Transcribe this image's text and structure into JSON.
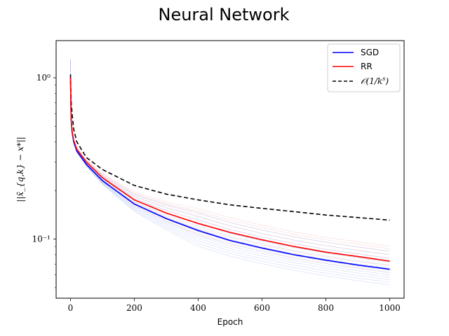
{
  "chart_data": {
    "type": "line",
    "title": "Neural Network",
    "xlabel": "Epoch",
    "ylabel": "||x̄_{q,k} − x*||",
    "xscale": "linear",
    "yscale": "log",
    "xlim": [
      -45,
      1045
    ],
    "ylim": [
      0.043,
      1.7
    ],
    "xticks": [
      0,
      200,
      400,
      600,
      800,
      1000
    ],
    "xtick_labels": [
      "0",
      "200",
      "400",
      "600",
      "800",
      "1000"
    ],
    "yticks": [
      0.1,
      1.0
    ],
    "ytick_labels": [
      "10⁻¹",
      "10⁰"
    ],
    "grid": false,
    "legend_position": "top-right",
    "x": [
      0,
      2,
      5,
      10,
      20,
      50,
      100,
      200,
      300,
      400,
      500,
      600,
      700,
      800,
      900,
      1000
    ],
    "series": [
      {
        "name": "SGD",
        "color": "#0000ff",
        "style": "solid",
        "values": [
          1.0,
          0.55,
          0.46,
          0.4,
          0.35,
          0.29,
          0.23,
          0.165,
          0.134,
          0.113,
          0.098,
          0.088,
          0.08,
          0.074,
          0.069,
          0.065
        ]
      },
      {
        "name": "RR",
        "color": "#ff0000",
        "style": "solid",
        "values": [
          1.0,
          0.56,
          0.47,
          0.41,
          0.36,
          0.3,
          0.24,
          0.175,
          0.145,
          0.125,
          0.11,
          0.099,
          0.09,
          0.083,
          0.078,
          0.073
        ]
      },
      {
        "name": "𝒪(1/k^s)",
        "color": "#000000",
        "style": "dashed",
        "values": [
          1.05,
          0.72,
          0.6,
          0.48,
          0.4,
          0.32,
          0.27,
          0.215,
          0.19,
          0.175,
          0.163,
          0.155,
          0.148,
          0.141,
          0.136,
          0.131
        ]
      }
    ],
    "faint_runs": {
      "sgd_color": "#aabcf5",
      "rr_color": "#f5b4b4",
      "sgd_final_values": [
        0.052,
        0.054,
        0.056,
        0.058,
        0.06,
        0.062,
        0.064,
        0.066,
        0.069,
        0.072,
        0.076,
        0.08,
        0.084
      ],
      "rr_final_values": [
        0.062,
        0.065,
        0.068,
        0.072,
        0.076,
        0.08,
        0.084,
        0.087,
        0.09
      ]
    },
    "legend_labels": {
      "sgd": "SGD",
      "rr": "RR",
      "bound_prefix": "𝒪(1/k",
      "bound_exp": "s",
      "bound_suffix": ")"
    }
  }
}
